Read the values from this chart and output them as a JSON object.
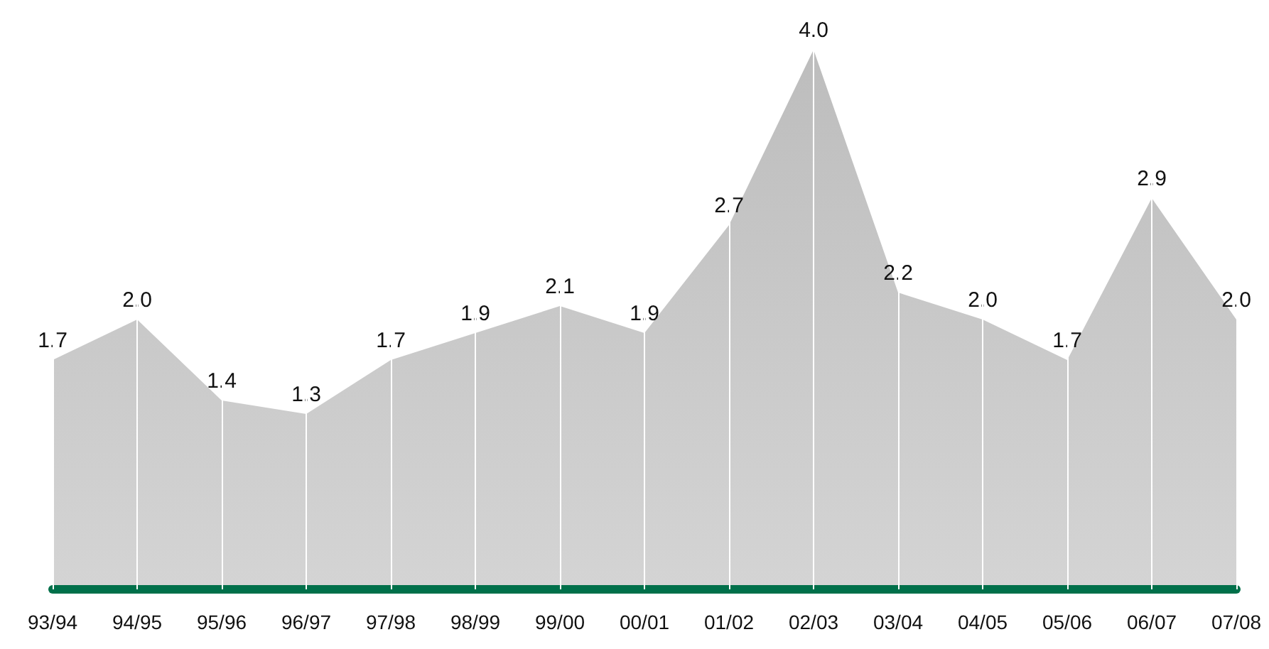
{
  "chart_data": {
    "type": "area",
    "categories": [
      "93/94",
      "94/95",
      "95/96",
      "96/97",
      "97/98",
      "98/99",
      "99/00",
      "00/01",
      "01/02",
      "02/03",
      "03/04",
      "04/05",
      "05/06",
      "06/07",
      "07/08"
    ],
    "values": [
      1.7,
      2.0,
      1.4,
      1.3,
      1.7,
      1.9,
      2.1,
      1.9,
      2.7,
      4.0,
      2.2,
      2.0,
      1.7,
      2.9,
      2.0
    ],
    "value_labels": [
      "1.7",
      "2.0",
      "1.4",
      "1.3",
      "1.7",
      "1.9",
      "2.1",
      "1.9",
      "2.7",
      "4.0",
      "2.2",
      "2.0",
      "1.7",
      "2.9",
      "2.0"
    ],
    "color": "#d4d4d4",
    "grid": "x",
    "marker": "none",
    "tick_labels": "x"
  }
}
